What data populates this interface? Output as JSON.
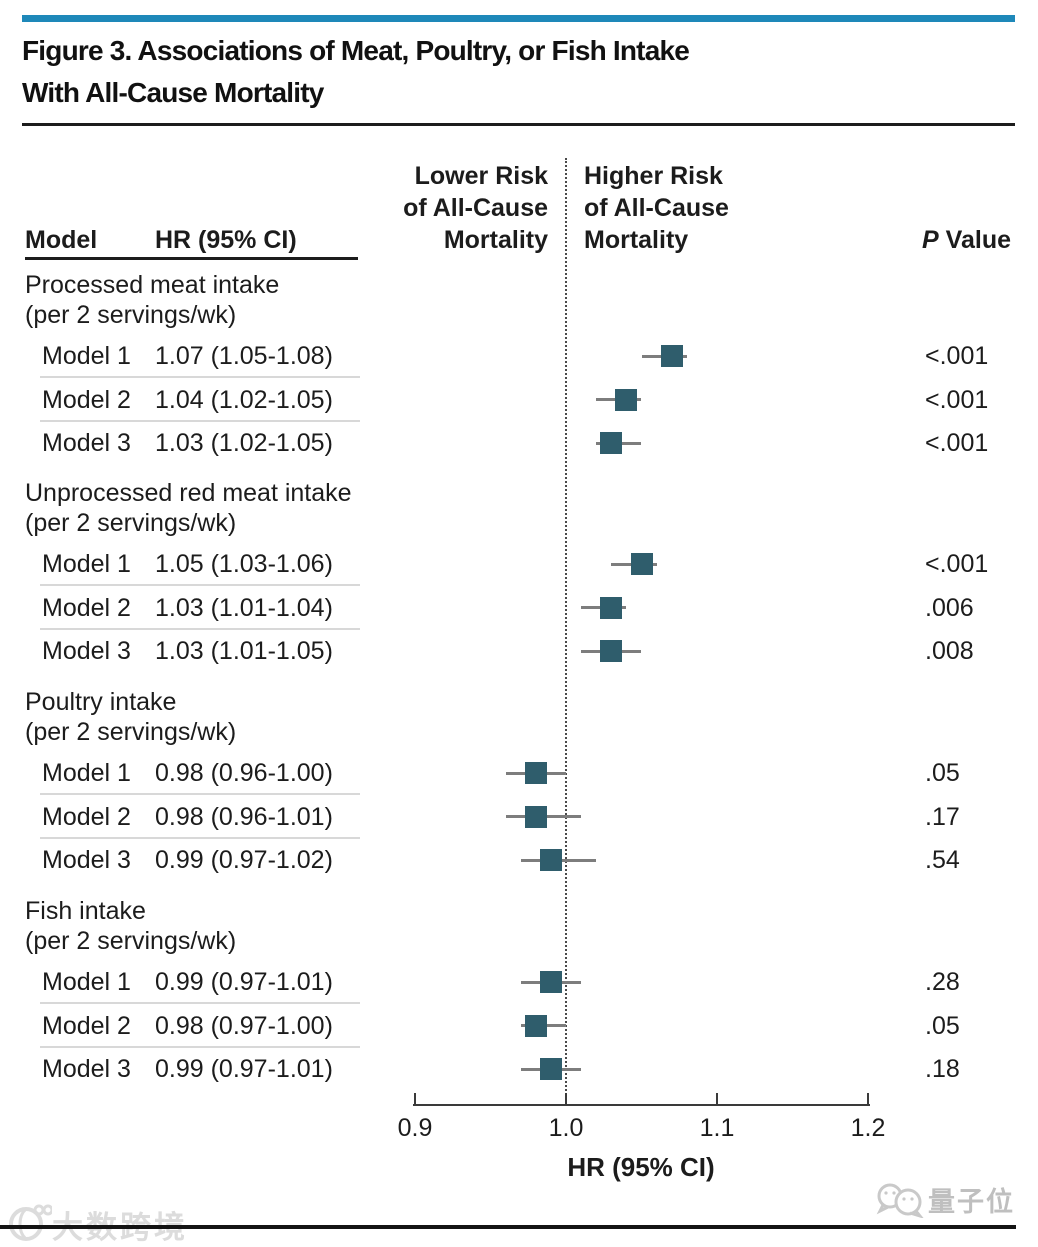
{
  "figure": {
    "title_line1": "Figure 3. Associations of Meat, Poultry, or Fish Intake",
    "title_line2": "With All-Cause Mortality"
  },
  "table": {
    "col_model": "Model",
    "col_hr": "HR (95% CI)",
    "lower_risk_header_lines": [
      "Lower Risk",
      "of All-Cause",
      "Mortality"
    ],
    "higher_risk_header_lines": [
      "Higher Risk",
      "of All-Cause",
      "Mortality"
    ],
    "p_header_italic": "P",
    "p_header_rest": " Value"
  },
  "chart_data": {
    "type": "forest",
    "title": "Associations of Meat, Poultry, or Fish Intake With All-Cause Mortality",
    "xlabel": "HR (95% CI)",
    "axis": {
      "range": [
        0.9,
        1.2
      ],
      "ticks": [
        0.9,
        1.0,
        1.1,
        1.2
      ],
      "tick_labels": [
        "0.9",
        "1.0",
        "1.1",
        "1.2"
      ],
      "reference_line": 1.0,
      "left_region_label": "Lower Risk of All-Cause Mortality",
      "right_region_label": "Higher Risk of All-Cause Mortality"
    },
    "groups": [
      {
        "label": "Processed meat intake",
        "sublabel": "(per 2 servings/wk)",
        "rows": [
          {
            "model": "Model 1",
            "hr_text": "1.07 (1.05-1.08)",
            "hr": 1.07,
            "lo": 1.05,
            "hi": 1.08,
            "p": "<.001"
          },
          {
            "model": "Model 2",
            "hr_text": "1.04 (1.02-1.05)",
            "hr": 1.04,
            "lo": 1.02,
            "hi": 1.05,
            "p": "<.001"
          },
          {
            "model": "Model 3",
            "hr_text": "1.03 (1.02-1.05)",
            "hr": 1.03,
            "lo": 1.02,
            "hi": 1.05,
            "p": "<.001"
          }
        ]
      },
      {
        "label": "Unprocessed red meat intake",
        "sublabel": "(per 2 servings/wk)",
        "rows": [
          {
            "model": "Model 1",
            "hr_text": "1.05 (1.03-1.06)",
            "hr": 1.05,
            "lo": 1.03,
            "hi": 1.06,
            "p": "<.001"
          },
          {
            "model": "Model 2",
            "hr_text": "1.03 (1.01-1.04)",
            "hr": 1.03,
            "lo": 1.01,
            "hi": 1.04,
            "p": ".006"
          },
          {
            "model": "Model 3",
            "hr_text": "1.03 (1.01-1.05)",
            "hr": 1.03,
            "lo": 1.01,
            "hi": 1.05,
            "p": ".008"
          }
        ]
      },
      {
        "label": "Poultry intake",
        "sublabel": "(per 2 servings/wk)",
        "rows": [
          {
            "model": "Model 1",
            "hr_text": "0.98 (0.96-1.00)",
            "hr": 0.98,
            "lo": 0.96,
            "hi": 1.0,
            "p": ".05"
          },
          {
            "model": "Model 2",
            "hr_text": "0.98 (0.96-1.01)",
            "hr": 0.98,
            "lo": 0.96,
            "hi": 1.01,
            "p": ".17"
          },
          {
            "model": "Model 3",
            "hr_text": "0.99 (0.97-1.02)",
            "hr": 0.99,
            "lo": 0.97,
            "hi": 1.02,
            "p": ".54"
          }
        ]
      },
      {
        "label": "Fish intake",
        "sublabel": "(per 2 servings/wk)",
        "rows": [
          {
            "model": "Model 1",
            "hr_text": "0.99 (0.97-1.01)",
            "hr": 0.99,
            "lo": 0.97,
            "hi": 1.01,
            "p": ".28"
          },
          {
            "model": "Model 2",
            "hr_text": "0.98 (0.97-1.00)",
            "hr": 0.98,
            "lo": 0.97,
            "hi": 1.0,
            "p": ".05"
          },
          {
            "model": "Model 3",
            "hr_text": "0.99 (0.97-1.01)",
            "hr": 0.99,
            "lo": 0.97,
            "hi": 1.01,
            "p": ".18"
          }
        ]
      }
    ],
    "colors": {
      "accent_bar": "#1e88b9",
      "marker": "#2f5d6c",
      "whisker": "#7d7d7d",
      "separator": "#d8d8d8"
    }
  },
  "watermarks": {
    "bottom_right": "量子位",
    "bottom_left": "大数跨境"
  }
}
